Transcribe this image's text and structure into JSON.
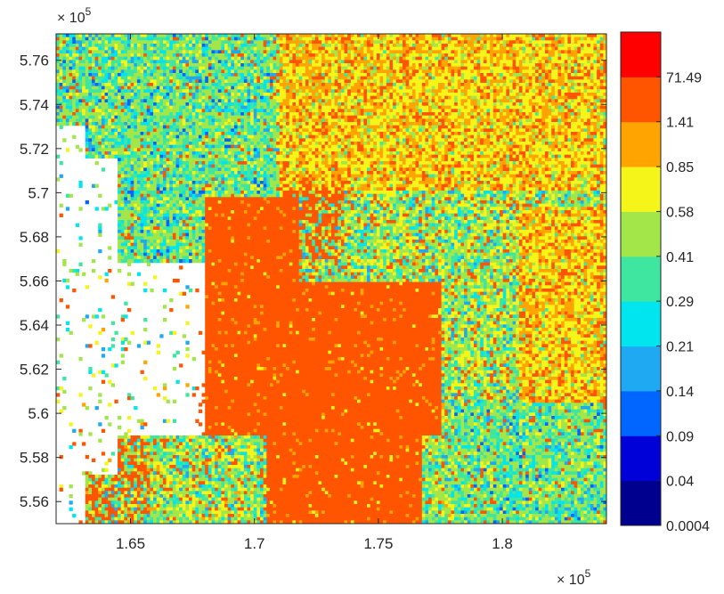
{
  "chart_data": {
    "type": "scatter",
    "title": "",
    "xlabel": "",
    "ylabel": "",
    "x_exponent_label": "× 10",
    "y_exponent_label": "× 10",
    "exponent": "5",
    "xlim": [
      162000,
      184200
    ],
    "ylim": [
      555000,
      577200
    ],
    "x_ticks": [
      {
        "value": 165000,
        "label": "1.65"
      },
      {
        "value": 170000,
        "label": "1.7"
      },
      {
        "value": 175000,
        "label": "1.75"
      },
      {
        "value": 180000,
        "label": "1.8"
      }
    ],
    "y_ticks": [
      {
        "value": 556000,
        "label": "5.56"
      },
      {
        "value": 558000,
        "label": "5.58"
      },
      {
        "value": 560000,
        "label": "5.6"
      },
      {
        "value": 562000,
        "label": "5.62"
      },
      {
        "value": 564000,
        "label": "5.64"
      },
      {
        "value": 566000,
        "label": "5.66"
      },
      {
        "value": 568000,
        "label": "5.68"
      },
      {
        "value": 570000,
        "label": "5.7"
      },
      {
        "value": 572000,
        "label": "5.72"
      },
      {
        "value": 574000,
        "label": "5.74"
      },
      {
        "value": 576000,
        "label": "5.76"
      }
    ],
    "colorbar": {
      "colors": [
        "#00008f",
        "#0000d9",
        "#0066ff",
        "#1fa9f2",
        "#00e5ee",
        "#3fe6a0",
        "#a3e64a",
        "#f5f51a",
        "#ffa400",
        "#ff5500",
        "#ff0000"
      ],
      "tick_labels": [
        "0.0004",
        "0.04",
        "0.09",
        "0.14",
        "0.21",
        "0.29",
        "0.41",
        "0.58",
        "0.85",
        "1.41",
        "71.49"
      ]
    },
    "grid": false,
    "legend": "none"
  }
}
